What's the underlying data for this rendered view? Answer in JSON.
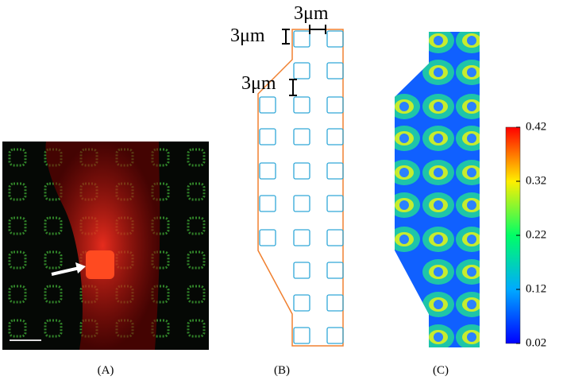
{
  "annotations": {
    "top_gap": "3μm",
    "side_gap": "3μm",
    "row_gap": "3μm"
  },
  "captions": [
    "(A)",
    "(B)",
    "(C)"
  ],
  "colorbar": {
    "ticks": [
      0.42,
      0.32,
      0.22,
      0.12,
      0.02
    ]
  }
}
